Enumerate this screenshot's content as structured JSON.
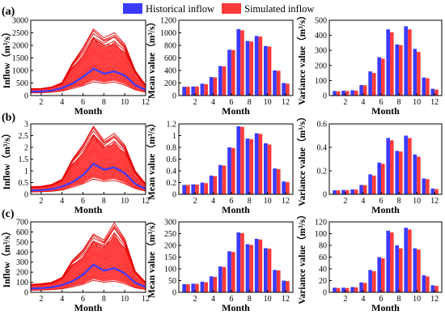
{
  "colors": {
    "historical": "#3b3bff",
    "simulated": "#ff3b3b",
    "sim_line": "#e60000",
    "axis": "#000000"
  },
  "legend": {
    "items": [
      {
        "label": "Historical inflow",
        "color": "#3b3bff"
      },
      {
        "label": "Simulated inflow",
        "color": "#ff3b3b"
      }
    ],
    "placement": "top-center"
  },
  "rows": [
    {
      "label": "(a)"
    },
    {
      "label": "(b)"
    },
    {
      "label": "(c)"
    }
  ],
  "chart_data": [
    {
      "id": "a-inflow",
      "type": "line",
      "ylabel": "Inflow（m³/s）",
      "xlabel": "Month",
      "x": [
        1,
        2,
        3,
        4,
        5,
        6,
        7,
        8,
        9,
        10,
        11,
        12
      ],
      "xticks": [
        2,
        4,
        6,
        8,
        10,
        12
      ],
      "xlim": [
        1,
        12
      ],
      "yticks": [
        0,
        500,
        1000,
        1500,
        2000,
        2500,
        3000
      ],
      "ylim": [
        0,
        3000
      ],
      "series": [
        {
          "name": "Historical inflow",
          "values": [
            160,
            160,
            200,
            300,
            480,
            740,
            1070,
            870,
            960,
            800,
            420,
            210
          ]
        },
        {
          "name": "Simulated inflow",
          "kind": "envelope",
          "upper": [
            270,
            280,
            340,
            520,
            1300,
            1900,
            2650,
            2300,
            2500,
            2050,
            1000,
            420
          ],
          "lower": [
            110,
            110,
            140,
            180,
            280,
            390,
            550,
            480,
            540,
            420,
            230,
            130
          ]
        }
      ]
    },
    {
      "id": "a-mean",
      "type": "bar",
      "ylabel": "Mean value（m³/s）",
      "xlabel": "Month",
      "categories": [
        1,
        2,
        3,
        4,
        5,
        6,
        7,
        8,
        9,
        10,
        11,
        12
      ],
      "xticks": [
        2,
        4,
        6,
        8,
        10,
        12
      ],
      "yticks": [
        0,
        200,
        400,
        600,
        800,
        1000,
        1200
      ],
      "ylim": [
        0,
        1200
      ],
      "series": [
        {
          "name": "Historical inflow",
          "values": [
            140,
            145,
            190,
            295,
            470,
            730,
            1060,
            870,
            950,
            790,
            400,
            200
          ]
        },
        {
          "name": "Simulated inflow",
          "values": [
            140,
            145,
            180,
            290,
            465,
            725,
            1040,
            860,
            940,
            780,
            395,
            190
          ]
        }
      ]
    },
    {
      "id": "a-var",
      "type": "bar",
      "ylabel": "Variance value（m³/s）",
      "xlabel": "Month",
      "categories": [
        1,
        2,
        3,
        4,
        5,
        6,
        7,
        8,
        9,
        10,
        11,
        12
      ],
      "xticks": [
        2,
        4,
        6,
        8,
        10,
        12
      ],
      "yticks": [
        0,
        100,
        200,
        300,
        400,
        500
      ],
      "ylim": [
        0,
        500
      ],
      "series": [
        {
          "name": "Historical inflow",
          "values": [
            30,
            32,
            35,
            70,
            160,
            255,
            440,
            340,
            460,
            310,
            120,
            45
          ]
        },
        {
          "name": "Simulated inflow",
          "values": [
            28,
            30,
            33,
            68,
            150,
            245,
            420,
            335,
            440,
            290,
            115,
            40
          ]
        }
      ]
    },
    {
      "id": "b-inflow",
      "type": "line",
      "ylabel": "Inflow（m³/s）",
      "xlabel": "Month",
      "x": [
        1,
        2,
        3,
        4,
        5,
        6,
        7,
        8,
        9,
        10,
        11,
        12
      ],
      "xticks": [
        2,
        4,
        6,
        8,
        10,
        12
      ],
      "xlim": [
        1,
        12
      ],
      "yticks": [
        0,
        0.5,
        1,
        1.5,
        2,
        2.5,
        3
      ],
      "ylim": [
        0,
        3.0
      ],
      "series": [
        {
          "name": "Historical inflow",
          "values": [
            0.17,
            0.18,
            0.22,
            0.33,
            0.52,
            0.82,
            1.3,
            1.05,
            1.15,
            0.9,
            0.45,
            0.22
          ]
        },
        {
          "name": "Simulated inflow",
          "kind": "envelope",
          "upper": [
            0.33,
            0.34,
            0.42,
            0.65,
            1.5,
            2.1,
            2.9,
            2.3,
            2.6,
            2.1,
            1.0,
            0.45
          ],
          "lower": [
            0.1,
            0.11,
            0.13,
            0.18,
            0.3,
            0.45,
            0.65,
            0.55,
            0.6,
            0.45,
            0.25,
            0.13
          ]
        }
      ]
    },
    {
      "id": "b-mean",
      "type": "bar",
      "ylabel": "Mean value（m³/s）",
      "xlabel": "Month",
      "categories": [
        1,
        2,
        3,
        4,
        5,
        6,
        7,
        8,
        9,
        10,
        11,
        12
      ],
      "xticks": [
        2,
        4,
        6,
        8,
        10,
        12
      ],
      "yticks": [
        0,
        0.2,
        0.4,
        0.6,
        0.8,
        1,
        1.2
      ],
      "ylim": [
        0,
        1.2
      ],
      "series": [
        {
          "name": "Historical inflow",
          "values": [
            0.16,
            0.17,
            0.2,
            0.32,
            0.5,
            0.8,
            1.16,
            0.95,
            1.04,
            0.87,
            0.44,
            0.22
          ]
        },
        {
          "name": "Simulated inflow",
          "values": [
            0.16,
            0.165,
            0.19,
            0.31,
            0.49,
            0.79,
            1.15,
            0.94,
            1.03,
            0.85,
            0.43,
            0.21
          ]
        }
      ]
    },
    {
      "id": "b-var",
      "type": "bar",
      "ylabel": "Variance value（m³/s）",
      "xlabel": "Month",
      "categories": [
        1,
        2,
        3,
        4,
        5,
        6,
        7,
        8,
        9,
        10,
        11,
        12
      ],
      "xticks": [
        2,
        4,
        6,
        8,
        10,
        12
      ],
      "yticks": [
        0,
        0.2,
        0.4,
        0.6
      ],
      "ylim": [
        0,
        0.6
      ],
      "series": [
        {
          "name": "Historical inflow",
          "values": [
            0.035,
            0.037,
            0.042,
            0.08,
            0.17,
            0.27,
            0.48,
            0.37,
            0.5,
            0.34,
            0.135,
            0.05
          ]
        },
        {
          "name": "Simulated inflow",
          "values": [
            0.034,
            0.036,
            0.04,
            0.078,
            0.16,
            0.26,
            0.46,
            0.365,
            0.48,
            0.32,
            0.13,
            0.045
          ]
        }
      ]
    },
    {
      "id": "c-inflow",
      "type": "line",
      "ylabel": "Inflow（m³/s）",
      "xlabel": "Month",
      "x": [
        1,
        2,
        3,
        4,
        5,
        6,
        7,
        8,
        9,
        10,
        11,
        12
      ],
      "xticks": [
        2,
        4,
        6,
        8,
        10,
        12
      ],
      "xlim": [
        1,
        12
      ],
      "yticks": [
        0,
        100,
        200,
        300,
        400,
        500,
        600,
        700
      ],
      "ylim": [
        0,
        700
      ],
      "series": [
        {
          "name": "Historical inflow",
          "values": [
            38,
            42,
            50,
            72,
            110,
            175,
            275,
            215,
            240,
            190,
            95,
            52
          ]
        },
        {
          "name": "Simulated inflow",
          "kind": "envelope",
          "upper": [
            80,
            85,
            100,
            150,
            320,
            420,
            580,
            520,
            690,
            530,
            210,
            100
          ],
          "lower": [
            20,
            22,
            26,
            35,
            55,
            80,
            120,
            100,
            110,
            85,
            45,
            28
          ]
        }
      ]
    },
    {
      "id": "c-mean",
      "type": "bar",
      "ylabel": "Mean value（m³/s）",
      "xlabel": "Month",
      "categories": [
        1,
        2,
        3,
        4,
        5,
        6,
        7,
        8,
        9,
        10,
        11,
        12
      ],
      "xticks": [
        2,
        4,
        6,
        8,
        10,
        12
      ],
      "yticks": [
        0,
        50,
        100,
        150,
        200,
        250,
        300
      ],
      "ylim": [
        0,
        300
      ],
      "series": [
        {
          "name": "Historical inflow",
          "values": [
            35,
            37,
            45,
            68,
            110,
            175,
            255,
            205,
            228,
            188,
            95,
            50
          ]
        },
        {
          "name": "Simulated inflow",
          "values": [
            34,
            36,
            43,
            66,
            108,
            172,
            252,
            202,
            225,
            186,
            93,
            48
          ]
        }
      ]
    },
    {
      "id": "c-var",
      "type": "bar",
      "ylabel": "Variance value（m³/s）",
      "xlabel": "Month",
      "categories": [
        1,
        2,
        3,
        4,
        5,
        6,
        7,
        8,
        9,
        10,
        11,
        12
      ],
      "xticks": [
        2,
        4,
        6,
        8,
        10,
        12
      ],
      "yticks": [
        0,
        20,
        40,
        60,
        80,
        100,
        120
      ],
      "ylim": [
        0,
        120
      ],
      "series": [
        {
          "name": "Historical inflow",
          "values": [
            8,
            8,
            9,
            17,
            38,
            60,
            105,
            80,
            110,
            75,
            29,
            12
          ]
        },
        {
          "name": "Simulated inflow",
          "values": [
            7.5,
            7.5,
            8.5,
            16,
            36,
            58,
            102,
            75,
            107,
            73,
            27,
            11
          ]
        }
      ]
    }
  ]
}
